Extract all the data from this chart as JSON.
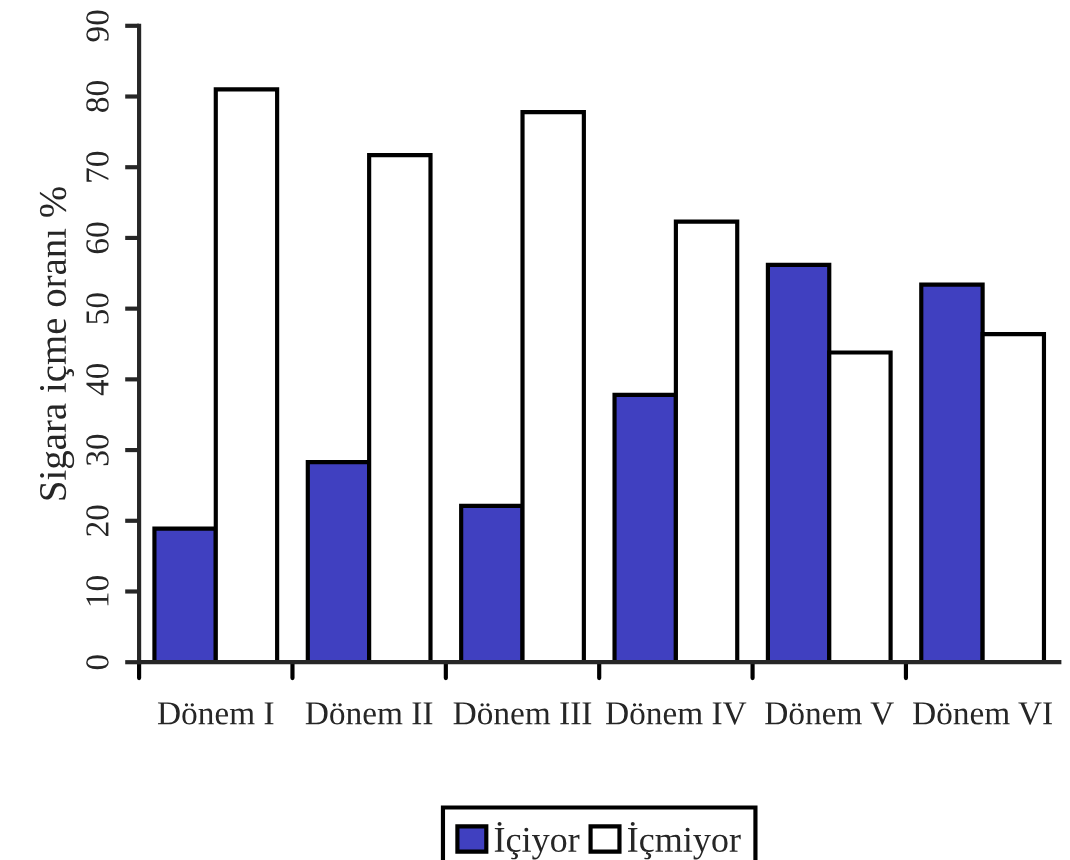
{
  "chart_data": {
    "type": "bar",
    "ylabel": "Sigara içme oranı %",
    "categories": [
      "Dönem I",
      "Dönem II",
      "Dönem III",
      "Dönem IV",
      "Dönem V",
      "Dönem VI"
    ],
    "series": [
      {
        "name": "İçiyor",
        "color": "#4040c0",
        "values": [
          18.9,
          28.3,
          22.1,
          37.8,
          56.2,
          53.4
        ]
      },
      {
        "name": "İçmiyor",
        "color": "#ffffff",
        "values": [
          81.0,
          71.7,
          77.8,
          62.3,
          43.8,
          46.4
        ]
      }
    ],
    "ylim": [
      0,
      90
    ],
    "yticks": [
      0,
      10,
      20,
      30,
      40,
      50,
      60,
      70,
      80,
      90
    ],
    "grid": false,
    "legend": "bottom"
  }
}
